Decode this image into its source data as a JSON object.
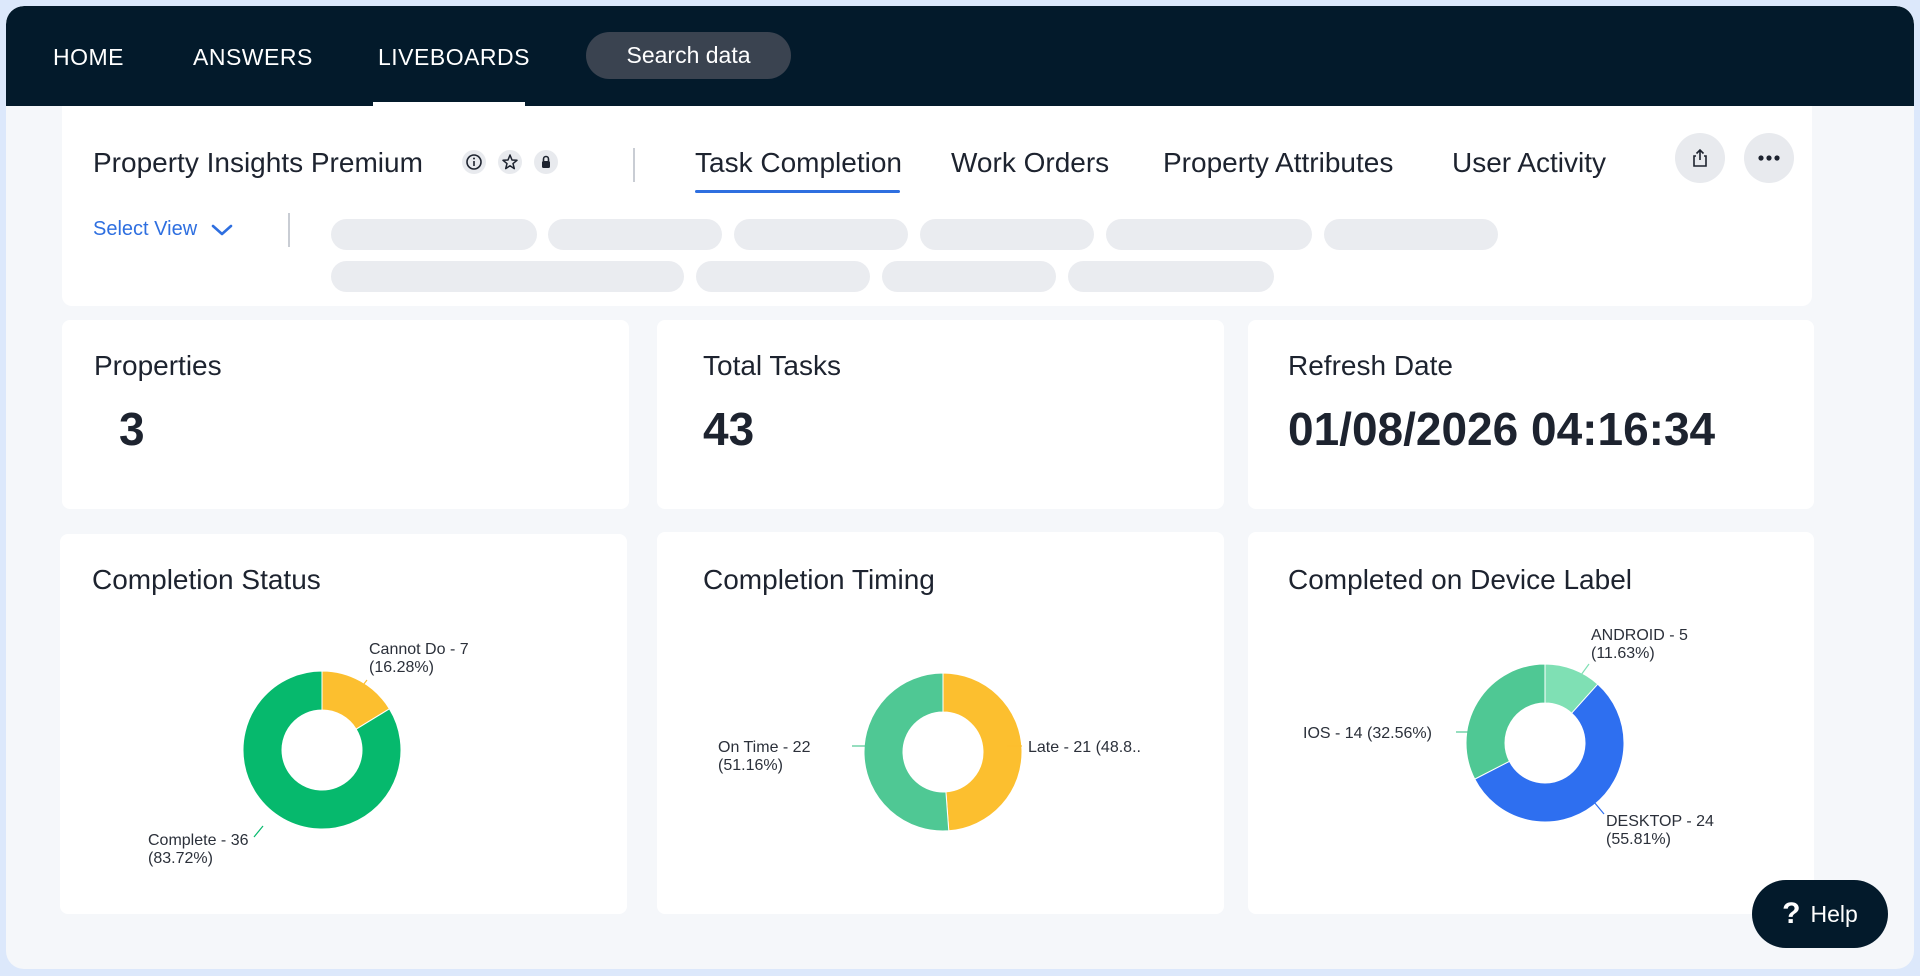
{
  "nav": {
    "home": "HOME",
    "answers": "ANSWERS",
    "liveboards": "LIVEBOARDS",
    "search": "Search data"
  },
  "liveboard": {
    "title": "Property Insights Premium",
    "tabs": [
      "Task Completion",
      "Work Orders",
      "Property Attributes",
      "User Activity"
    ],
    "active_tab": "Task Completion",
    "select_view": "Select View"
  },
  "kpis": {
    "properties": {
      "title": "Properties",
      "value": "3"
    },
    "total_tasks": {
      "title": "Total Tasks",
      "value": "43"
    },
    "refresh_date": {
      "title": "Refresh Date",
      "value": "01/08/2026 04:16:34"
    }
  },
  "chart_data": [
    {
      "type": "pie",
      "title": "Completion Status",
      "donut": true,
      "slices": [
        {
          "label": "Cannot Do - 7",
          "pct_label": "(16.28%)",
          "value": 7,
          "color": "#fcbf2f"
        },
        {
          "label": "Complete - 36",
          "pct_label": "(83.72%)",
          "value": 36,
          "color": "#06b96d"
        }
      ]
    },
    {
      "type": "pie",
      "title": "Completion Timing",
      "donut": true,
      "slices": [
        {
          "label": "Late - 21 (48.8..",
          "pct_label": "",
          "value": 21,
          "color": "#fcbf2f"
        },
        {
          "label": "On Time - 22",
          "pct_label": "(51.16%)",
          "value": 22,
          "color": "#4fc894"
        }
      ]
    },
    {
      "type": "pie",
      "title": "Completed on Device Label",
      "donut": true,
      "slices": [
        {
          "label": "ANDROID - 5",
          "pct_label": "(11.63%)",
          "value": 5,
          "color": "#7fe0b4"
        },
        {
          "label": "DESKTOP - 24",
          "pct_label": "(55.81%)",
          "value": 24,
          "color": "#2e6ff0"
        },
        {
          "label": "IOS - 14 (32.56%)",
          "pct_label": "",
          "value": 14,
          "color": "#4fc894"
        }
      ]
    }
  ],
  "help": {
    "label": "Help",
    "icon": "question-icon"
  }
}
